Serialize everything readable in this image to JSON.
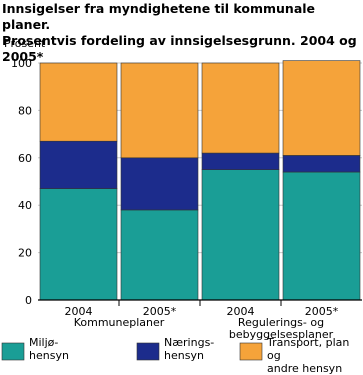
{
  "chart_data": {
    "type": "stacked_bar",
    "title": "Innsigelser fra myndighetene til kommunale planer.\nProsentvis fordeling av innsigelsesgrunn. 2004 og 2005*",
    "y_label": "Prosent",
    "categories": [
      "2004",
      "2005*",
      "2004",
      "2005*"
    ],
    "groups": [
      "Kommuneplaner",
      "Regulerings- og\nbebyggelsesplaner"
    ],
    "series": [
      {
        "name": "Miljø-\nhensyn",
        "color": "#1a9e96",
        "values": [
          47,
          38,
          55,
          54
        ]
      },
      {
        "name": "Nærings-\nhensyn",
        "color": "#1c2c8c",
        "values": [
          20,
          22,
          7,
          7
        ]
      },
      {
        "name": "Transport, plan og\nandre hensyn",
        "color": "#f5a33a",
        "values": [
          33,
          40,
          38,
          40
        ]
      }
    ],
    "ylim": [
      0,
      100
    ],
    "yticks": [
      0,
      20,
      40,
      60,
      80,
      100
    ],
    "grid": true
  }
}
